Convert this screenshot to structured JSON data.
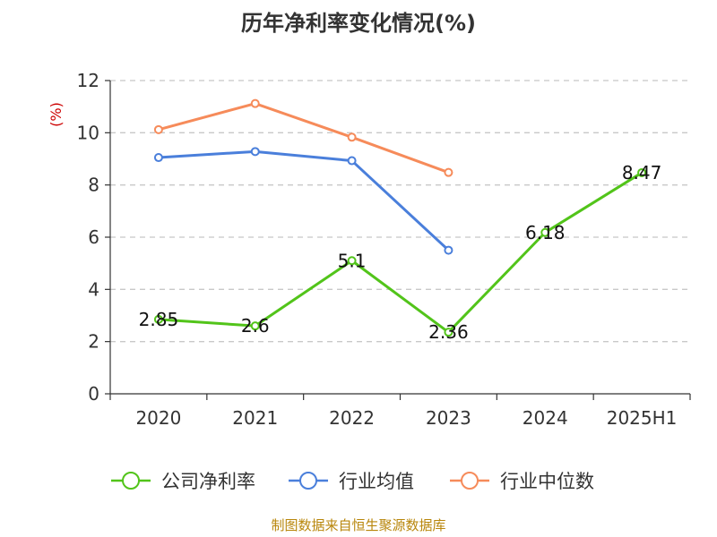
{
  "source_text": "制图数据来自恒生聚源数据库",
  "chart_data": {
    "type": "line",
    "title": "历年净利率变化情况(%)",
    "ylabel": "(%)",
    "xlabel": "",
    "categories": [
      "2020",
      "2021",
      "2022",
      "2023",
      "2024",
      "2025H1"
    ],
    "ylim": [
      0,
      12
    ],
    "yticks": [
      0,
      2,
      4,
      6,
      8,
      10,
      12
    ],
    "grid": true,
    "legend_position": "bottom",
    "series": [
      {
        "name": "公司净利率",
        "color": "#52c41a",
        "values": [
          2.85,
          2.6,
          5.1,
          2.36,
          6.18,
          8.47
        ],
        "labels": [
          "2.85",
          "2.6",
          "5.1",
          "2.36",
          "6.18",
          "8.47"
        ],
        "show_labels": true
      },
      {
        "name": "行业均值",
        "color": "#4a7fdb",
        "values": [
          9.05,
          9.28,
          8.93,
          5.5,
          null,
          null
        ],
        "show_labels": false
      },
      {
        "name": "行业中位数",
        "color": "#f68b5a",
        "values": [
          10.12,
          11.12,
          9.83,
          8.48,
          null,
          null
        ],
        "show_labels": false
      }
    ]
  }
}
